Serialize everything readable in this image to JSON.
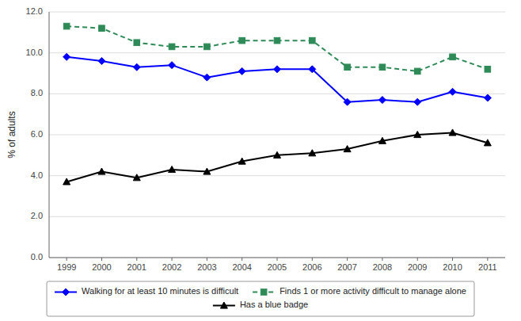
{
  "chart_data": {
    "type": "line",
    "x": [
      1999,
      2000,
      2001,
      2002,
      2003,
      2004,
      2005,
      2006,
      2007,
      2008,
      2009,
      2010,
      2011
    ],
    "series": [
      {
        "name": "Walking for at least 10 minutes is difficult",
        "color": "#0000FF",
        "marker": "diamond",
        "line_style": "solid",
        "values": [
          9.8,
          9.6,
          9.3,
          9.4,
          8.8,
          9.1,
          9.2,
          9.2,
          7.6,
          7.7,
          7.6,
          8.1,
          7.8
        ]
      },
      {
        "name": "Finds 1 or more activity difficult to manage alone",
        "color": "#2E8B57",
        "marker": "square",
        "line_style": "dashed",
        "values": [
          11.3,
          11.2,
          10.5,
          10.3,
          10.3,
          10.6,
          10.6,
          10.6,
          9.3,
          9.3,
          9.1,
          9.8,
          9.2
        ]
      },
      {
        "name": "Has a blue badge",
        "color": "#000000",
        "marker": "triangle",
        "line_style": "solid",
        "values": [
          3.7,
          4.2,
          3.9,
          4.3,
          4.2,
          4.7,
          5.0,
          5.1,
          5.3,
          5.7,
          6.0,
          6.1,
          5.6
        ]
      }
    ],
    "xlim": [
      1998.5,
      2011.5
    ],
    "xticks": [
      1999,
      2000,
      2001,
      2002,
      2003,
      2004,
      2005,
      2006,
      2007,
      2008,
      2009,
      2010,
      2011
    ],
    "ylim": [
      0,
      12
    ],
    "yticks": [
      {
        "value": 0,
        "label": "0.0"
      },
      {
        "value": 2,
        "label": "2.0"
      },
      {
        "value": 4,
        "label": "4.0"
      },
      {
        "value": 6,
        "label": "6.0"
      },
      {
        "value": 8,
        "label": "8.0"
      },
      {
        "value": 10,
        "label": "10.0"
      },
      {
        "value": 12,
        "label": "12.0"
      }
    ],
    "ylabel": "% of adults",
    "grid": true,
    "legend": "bottom"
  }
}
